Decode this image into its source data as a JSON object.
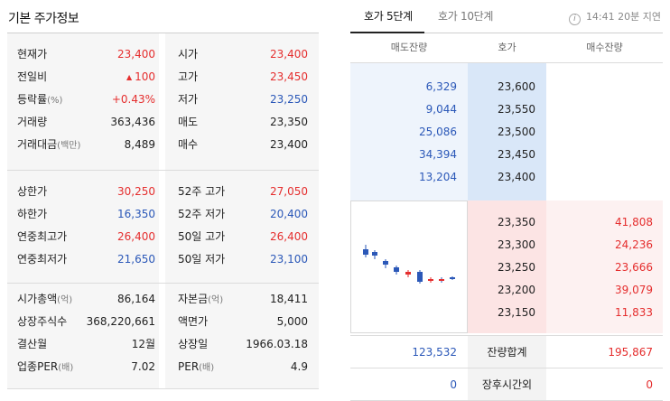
{
  "left": {
    "title": "기본 주가정보",
    "sections": [
      {
        "rows": [
          {
            "l1": "현재가",
            "u1": "",
            "v1": "23,400",
            "c1": "red",
            "l2": "시가",
            "u2": "",
            "v2": "23,400",
            "c2": "red"
          },
          {
            "l1": "전일비",
            "u1": "",
            "v1": "100",
            "c1": "red",
            "arrow": "▲",
            "l2": "고가",
            "u2": "",
            "v2": "23,450",
            "c2": "red"
          },
          {
            "l1": "등락률",
            "u1": "(%)",
            "v1": "+0.43%",
            "c1": "red",
            "l2": "저가",
            "u2": "",
            "v2": "23,250",
            "c2": "blue"
          },
          {
            "l1": "거래량",
            "u1": "",
            "v1": "363,436",
            "c1": "",
            "l2": "매도",
            "u2": "",
            "v2": "23,350",
            "c2": ""
          },
          {
            "l1": "거래대금",
            "u1": "(백만)",
            "v1": "8,489",
            "c1": "",
            "l2": "매수",
            "u2": "",
            "v2": "23,400",
            "c2": ""
          }
        ]
      },
      {
        "rows": [
          {
            "l1": "상한가",
            "u1": "",
            "v1": "30,250",
            "c1": "red",
            "l2": "52주 고가",
            "u2": "",
            "v2": "27,050",
            "c2": "red"
          },
          {
            "l1": "하한가",
            "u1": "",
            "v1": "16,350",
            "c1": "blue",
            "l2": "52주 저가",
            "u2": "",
            "v2": "20,400",
            "c2": "blue"
          },
          {
            "l1": "연중최고가",
            "u1": "",
            "v1": "26,400",
            "c1": "red",
            "l2": "50일 고가",
            "u2": "",
            "v2": "26,400",
            "c2": "red"
          },
          {
            "l1": "연중최저가",
            "u1": "",
            "v1": "21,650",
            "c1": "blue",
            "l2": "50일 저가",
            "u2": "",
            "v2": "23,100",
            "c2": "blue"
          }
        ]
      },
      {
        "rows": [
          {
            "l1": "시가총액",
            "u1": "(억)",
            "v1": "86,164",
            "c1": "",
            "l2": "자본금",
            "u2": "(억)",
            "v2": "18,411",
            "c2": ""
          },
          {
            "l1": "상장주식수",
            "u1": "",
            "v1": "368,220,661",
            "c1": "",
            "l2": "액면가",
            "u2": "",
            "v2": "5,000",
            "c2": ""
          },
          {
            "l1": "결산월",
            "u1": "",
            "v1": "12월",
            "c1": "",
            "l2": "상장일",
            "u2": "",
            "v2": "1966.03.18",
            "c2": ""
          },
          {
            "l1": "업종PER",
            "u1": "(배)",
            "v1": "7.02",
            "c1": "",
            "l2": "PER",
            "u2": "(배)",
            "v2": "4.9",
            "c2": ""
          }
        ]
      }
    ]
  },
  "right": {
    "tabs": [
      "호가 5단계",
      "호가 10단계"
    ],
    "info_icon": "i",
    "time_info": "14:41 20분 지연",
    "headers": [
      "매도잔량",
      "호가",
      "매수잔량"
    ],
    "asks": [
      {
        "qty": "6,329",
        "price": "23,600"
      },
      {
        "qty": "9,044",
        "price": "23,550"
      },
      {
        "qty": "25,086",
        "price": "23,500"
      },
      {
        "qty": "34,394",
        "price": "23,450"
      },
      {
        "qty": "13,204",
        "price": "23,400"
      }
    ],
    "bids": [
      {
        "price": "23,350",
        "qty": "41,808"
      },
      {
        "price": "23,300",
        "qty": "24,236"
      },
      {
        "price": "23,250",
        "qty": "23,666"
      },
      {
        "price": "23,200",
        "qty": "39,079"
      },
      {
        "price": "23,150",
        "qty": "11,833"
      }
    ],
    "total": {
      "ask": "123,532",
      "label": "잔량합계",
      "bid": "195,867"
    },
    "after": {
      "ask": "0",
      "label": "장후시간외",
      "bid": "0"
    }
  },
  "colors": {
    "up": "#e52e2e",
    "down": "#2b58b8"
  }
}
